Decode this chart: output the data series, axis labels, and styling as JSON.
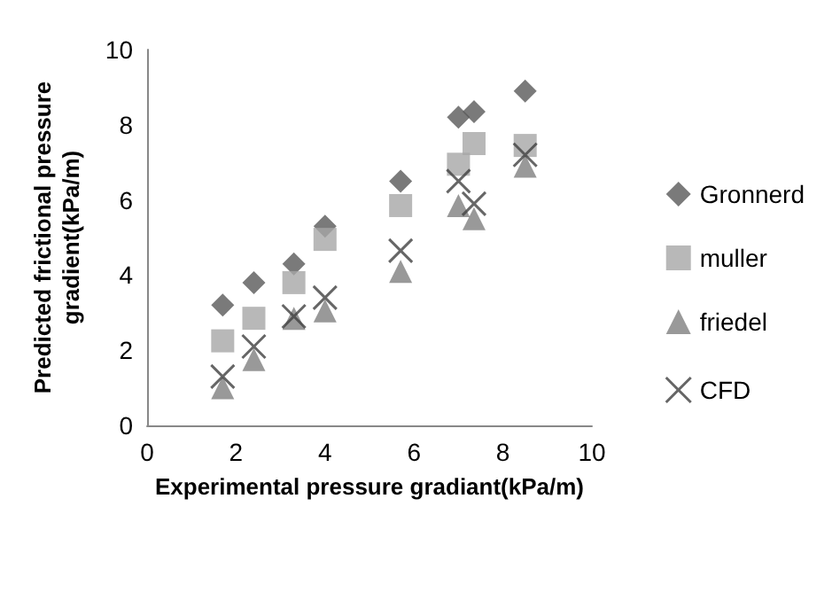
{
  "chart_data": {
    "type": "scatter",
    "xlabel": "Experimental pressure gradiant(kPa/m)",
    "ylabel": "Predicted frictional pressure gradient(kPa/m)",
    "x": [
      1.7,
      2.4,
      3.3,
      4.0,
      5.7,
      7.0,
      7.35,
      8.5
    ],
    "xlim": [
      0,
      10
    ],
    "xticks": [
      0,
      2,
      4,
      6,
      8,
      10
    ],
    "ylim": [
      0,
      10
    ],
    "yticks": [
      0,
      2,
      4,
      6,
      8,
      10
    ],
    "grid": false,
    "legend": "right",
    "series": [
      {
        "name": "Gronnerd",
        "color": "#595959",
        "marker": "diamond",
        "values": [
          3.2,
          3.8,
          4.3,
          5.3,
          6.5,
          8.2,
          8.35,
          8.9
        ]
      },
      {
        "name": "muller",
        "color": "#a6a6a6",
        "marker": "square",
        "values": [
          2.25,
          2.85,
          3.8,
          4.95,
          5.85,
          6.95,
          7.5,
          7.45
        ]
      },
      {
        "name": "friedel",
        "color": "#808080",
        "marker": "triangle",
        "values": [
          1.0,
          1.75,
          2.85,
          3.05,
          4.1,
          5.85,
          5.5,
          6.9
        ]
      },
      {
        "name": "CFD",
        "color": "#404040",
        "marker": "cross",
        "values": [
          1.3,
          2.1,
          2.9,
          3.4,
          4.65,
          6.5,
          5.9,
          7.2
        ]
      }
    ]
  }
}
